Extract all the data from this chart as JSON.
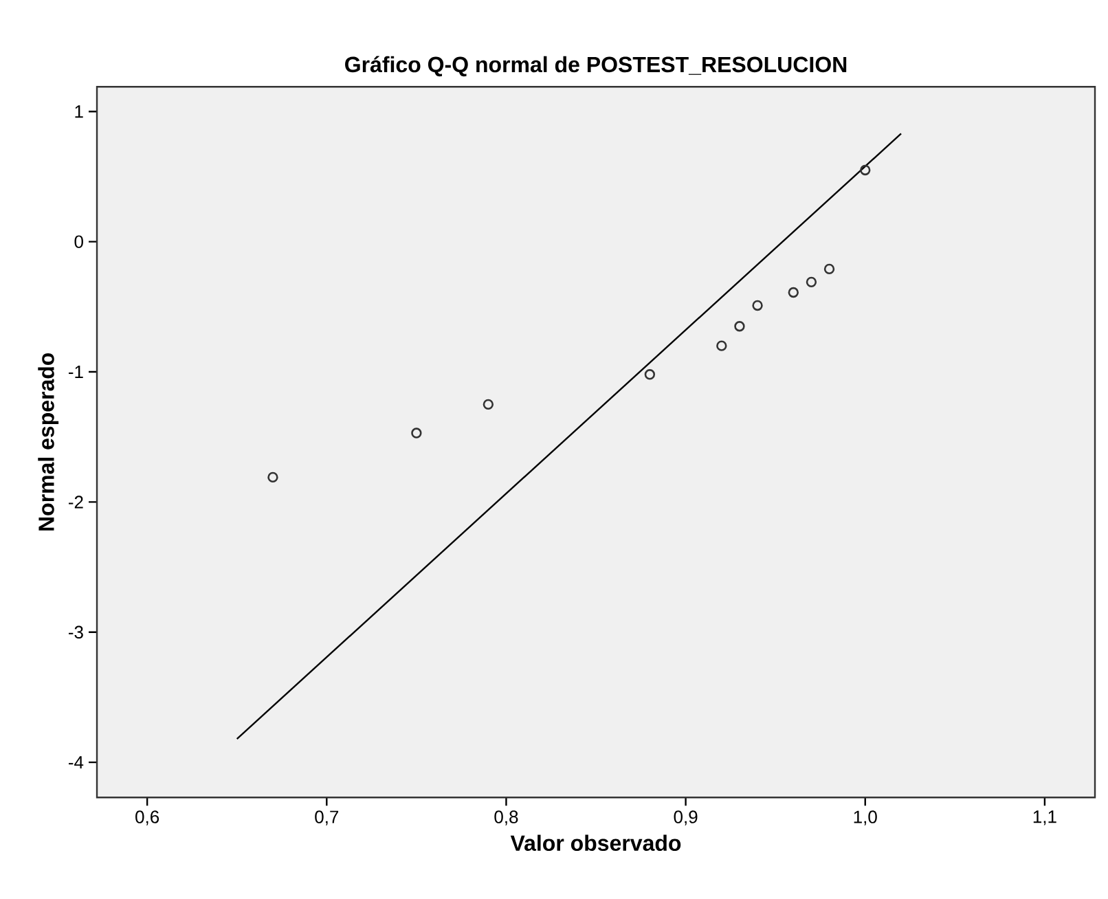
{
  "chart_data": {
    "type": "scatter",
    "title": "Gráfico Q-Q normal de POSTEST_RESOLUCION",
    "xlabel": "Valor observado",
    "ylabel": "Normal esperado",
    "series": [
      {
        "type": "scatter",
        "color": "#333333",
        "marker": "circle",
        "x": [
          0.67,
          0.75,
          0.79,
          0.88,
          0.92,
          0.93,
          0.94,
          0.96,
          0.97,
          0.98,
          1.0
        ],
        "values": [
          -1.81,
          -1.47,
          -1.25,
          -1.02,
          -0.8,
          -0.65,
          -0.49,
          -0.39,
          -0.31,
          -0.21,
          0.55
        ]
      },
      {
        "type": "line",
        "color": "#000000",
        "line_style": "solid",
        "x": [
          0.65,
          1.02
        ],
        "values": [
          -3.82,
          0.83
        ]
      }
    ],
    "xlim": [
      0.572,
      1.128
    ],
    "ylim": [
      -4.27,
      1.19
    ],
    "xticks": [
      {
        "value": 0.6,
        "label": "0,6"
      },
      {
        "value": 0.7,
        "label": "0,7"
      },
      {
        "value": 0.8,
        "label": "0,8"
      },
      {
        "value": 0.9,
        "label": "0,9"
      },
      {
        "value": 1.0,
        "label": "1,0"
      },
      {
        "value": 1.1,
        "label": "1,1"
      }
    ],
    "yticks": [
      -4,
      -3,
      -2,
      -1,
      0,
      1
    ],
    "grid": false,
    "legend": false
  }
}
